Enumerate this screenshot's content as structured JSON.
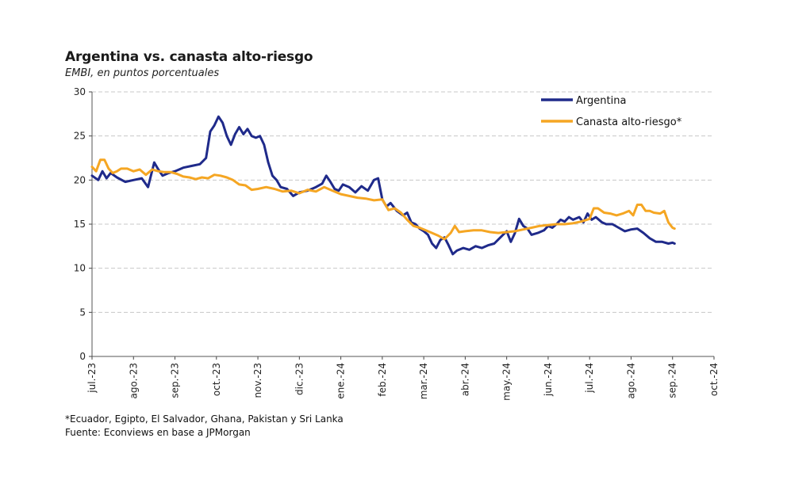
{
  "chart_data": {
    "type": "line",
    "title": "Argentina vs. canasta alto-riesgo",
    "subtitle": "EMBI, en puntos porcentuales",
    "ylim": [
      0,
      30
    ],
    "yticks": [
      0,
      5,
      10,
      15,
      20,
      25,
      30
    ],
    "grid": "horizontal dashed",
    "legend_position": "top-right",
    "x_labels": [
      "jul.-23",
      "ago.-23",
      "sep.-23",
      "oct.-23",
      "nov.-23",
      "dic.-23",
      "ene.-24",
      "feb.-24",
      "mar.-24",
      "abr.-24",
      "may.-24",
      "jun.-24",
      "jul.-24",
      "ago.-24",
      "sep.-24",
      "oct.-24"
    ],
    "x_range": [
      0,
      15
    ],
    "series": [
      {
        "name": "Argentina",
        "color": "#1f2a8a",
        "points": [
          [
            0,
            20.5
          ],
          [
            0.15,
            20.0
          ],
          [
            0.25,
            21.0
          ],
          [
            0.35,
            20.2
          ],
          [
            0.45,
            20.8
          ],
          [
            0.6,
            20.3
          ],
          [
            0.8,
            19.8
          ],
          [
            1.0,
            20.0
          ],
          [
            1.2,
            20.2
          ],
          [
            1.35,
            19.2
          ],
          [
            1.5,
            22.0
          ],
          [
            1.6,
            21.2
          ],
          [
            1.7,
            20.5
          ],
          [
            1.85,
            20.8
          ],
          [
            2.0,
            21.0
          ],
          [
            2.2,
            21.4
          ],
          [
            2.4,
            21.6
          ],
          [
            2.6,
            21.8
          ],
          [
            2.75,
            22.5
          ],
          [
            2.85,
            25.5
          ],
          [
            2.95,
            26.2
          ],
          [
            3.05,
            27.2
          ],
          [
            3.15,
            26.5
          ],
          [
            3.25,
            25.0
          ],
          [
            3.35,
            24.0
          ],
          [
            3.45,
            25.2
          ],
          [
            3.55,
            26.0
          ],
          [
            3.65,
            25.2
          ],
          [
            3.75,
            25.8
          ],
          [
            3.85,
            25.0
          ],
          [
            3.95,
            24.8
          ],
          [
            4.05,
            25.0
          ],
          [
            4.15,
            24.0
          ],
          [
            4.25,
            22.0
          ],
          [
            4.35,
            20.5
          ],
          [
            4.45,
            20.0
          ],
          [
            4.55,
            19.2
          ],
          [
            4.7,
            19.0
          ],
          [
            4.85,
            18.2
          ],
          [
            5.0,
            18.6
          ],
          [
            5.2,
            18.8
          ],
          [
            5.4,
            19.2
          ],
          [
            5.55,
            19.6
          ],
          [
            5.65,
            20.5
          ],
          [
            5.75,
            19.8
          ],
          [
            5.85,
            19.0
          ],
          [
            5.95,
            18.8
          ],
          [
            6.05,
            19.5
          ],
          [
            6.2,
            19.2
          ],
          [
            6.35,
            18.6
          ],
          [
            6.5,
            19.3
          ],
          [
            6.65,
            18.8
          ],
          [
            6.8,
            20.0
          ],
          [
            6.9,
            20.2
          ],
          [
            7.0,
            17.8
          ],
          [
            7.1,
            17.0
          ],
          [
            7.2,
            17.4
          ],
          [
            7.35,
            16.5
          ],
          [
            7.5,
            16.0
          ],
          [
            7.6,
            16.3
          ],
          [
            7.7,
            15.2
          ],
          [
            7.8,
            15.0
          ],
          [
            7.9,
            14.5
          ],
          [
            8.0,
            14.2
          ],
          [
            8.1,
            13.8
          ],
          [
            8.2,
            12.8
          ],
          [
            8.3,
            12.3
          ],
          [
            8.4,
            13.2
          ],
          [
            8.5,
            13.5
          ],
          [
            8.6,
            12.6
          ],
          [
            8.7,
            11.6
          ],
          [
            8.8,
            12.0
          ],
          [
            8.95,
            12.3
          ],
          [
            9.1,
            12.1
          ],
          [
            9.25,
            12.5
          ],
          [
            9.4,
            12.3
          ],
          [
            9.55,
            12.6
          ],
          [
            9.7,
            12.8
          ],
          [
            9.85,
            13.5
          ],
          [
            10.0,
            14.2
          ],
          [
            10.1,
            13.0
          ],
          [
            10.2,
            14.0
          ],
          [
            10.3,
            15.6
          ],
          [
            10.4,
            14.8
          ],
          [
            10.5,
            14.5
          ],
          [
            10.6,
            13.8
          ],
          [
            10.75,
            14.0
          ],
          [
            10.9,
            14.3
          ],
          [
            11.0,
            14.8
          ],
          [
            11.1,
            14.6
          ],
          [
            11.2,
            15.0
          ],
          [
            11.3,
            15.5
          ],
          [
            11.4,
            15.3
          ],
          [
            11.5,
            15.8
          ],
          [
            11.6,
            15.5
          ],
          [
            11.75,
            15.8
          ],
          [
            11.85,
            15.2
          ],
          [
            11.95,
            16.2
          ],
          [
            12.05,
            15.5
          ],
          [
            12.15,
            15.8
          ],
          [
            12.3,
            15.2
          ],
          [
            12.4,
            15.0
          ],
          [
            12.55,
            15.0
          ],
          [
            12.7,
            14.6
          ],
          [
            12.85,
            14.2
          ],
          [
            13.0,
            14.4
          ],
          [
            13.15,
            14.5
          ],
          [
            13.3,
            14.0
          ],
          [
            13.45,
            13.4
          ],
          [
            13.6,
            13.0
          ],
          [
            13.75,
            13.0
          ],
          [
            13.9,
            12.8
          ],
          [
            14.0,
            12.9
          ],
          [
            14.05,
            12.8
          ]
        ]
      },
      {
        "name": "Canasta alto-riesgo*",
        "color": "#f5a623",
        "points": [
          [
            0,
            21.5
          ],
          [
            0.1,
            21.0
          ],
          [
            0.2,
            22.3
          ],
          [
            0.3,
            22.3
          ],
          [
            0.4,
            21.3
          ],
          [
            0.5,
            20.8
          ],
          [
            0.6,
            21.0
          ],
          [
            0.7,
            21.3
          ],
          [
            0.85,
            21.3
          ],
          [
            1.0,
            21.0
          ],
          [
            1.15,
            21.2
          ],
          [
            1.3,
            20.6
          ],
          [
            1.45,
            21.2
          ],
          [
            1.6,
            21.0
          ],
          [
            1.75,
            20.9
          ],
          [
            1.9,
            20.9
          ],
          [
            2.05,
            20.7
          ],
          [
            2.2,
            20.4
          ],
          [
            2.35,
            20.3
          ],
          [
            2.5,
            20.1
          ],
          [
            2.65,
            20.3
          ],
          [
            2.8,
            20.2
          ],
          [
            2.95,
            20.6
          ],
          [
            3.1,
            20.5
          ],
          [
            3.25,
            20.3
          ],
          [
            3.4,
            20.0
          ],
          [
            3.55,
            19.5
          ],
          [
            3.7,
            19.4
          ],
          [
            3.85,
            18.9
          ],
          [
            4.0,
            19.0
          ],
          [
            4.2,
            19.2
          ],
          [
            4.4,
            19.0
          ],
          [
            4.6,
            18.7
          ],
          [
            4.8,
            18.8
          ],
          [
            5.0,
            18.5
          ],
          [
            5.2,
            18.9
          ],
          [
            5.4,
            18.7
          ],
          [
            5.6,
            19.2
          ],
          [
            5.8,
            18.8
          ],
          [
            6.0,
            18.4
          ],
          [
            6.2,
            18.2
          ],
          [
            6.4,
            18.0
          ],
          [
            6.6,
            17.9
          ],
          [
            6.8,
            17.7
          ],
          [
            7.0,
            17.8
          ],
          [
            7.15,
            16.6
          ],
          [
            7.3,
            16.8
          ],
          [
            7.45,
            16.3
          ],
          [
            7.6,
            15.5
          ],
          [
            7.75,
            14.8
          ],
          [
            7.9,
            14.6
          ],
          [
            8.05,
            14.3
          ],
          [
            8.2,
            14.0
          ],
          [
            8.35,
            13.7
          ],
          [
            8.5,
            13.3
          ],
          [
            8.65,
            14.0
          ],
          [
            8.75,
            14.8
          ],
          [
            8.85,
            14.1
          ],
          [
            9.0,
            14.2
          ],
          [
            9.2,
            14.3
          ],
          [
            9.4,
            14.3
          ],
          [
            9.6,
            14.1
          ],
          [
            9.8,
            14.0
          ],
          [
            10.0,
            14.1
          ],
          [
            10.2,
            14.2
          ],
          [
            10.4,
            14.4
          ],
          [
            10.6,
            14.6
          ],
          [
            10.8,
            14.8
          ],
          [
            11.0,
            14.9
          ],
          [
            11.2,
            15.0
          ],
          [
            11.4,
            15.0
          ],
          [
            11.6,
            15.1
          ],
          [
            11.8,
            15.3
          ],
          [
            12.0,
            15.6
          ],
          [
            12.1,
            16.8
          ],
          [
            12.2,
            16.8
          ],
          [
            12.35,
            16.3
          ],
          [
            12.5,
            16.2
          ],
          [
            12.65,
            16.0
          ],
          [
            12.8,
            16.2
          ],
          [
            12.95,
            16.5
          ],
          [
            13.05,
            16.0
          ],
          [
            13.15,
            17.2
          ],
          [
            13.25,
            17.2
          ],
          [
            13.35,
            16.5
          ],
          [
            13.45,
            16.5
          ],
          [
            13.55,
            16.3
          ],
          [
            13.7,
            16.2
          ],
          [
            13.8,
            16.5
          ],
          [
            13.9,
            15.2
          ],
          [
            14.0,
            14.6
          ],
          [
            14.05,
            14.5
          ]
        ]
      }
    ]
  },
  "footnotes": {
    "note": "*Ecuador, Egipto, El Salvador, Ghana, Pakistan y Sri Lanka",
    "source": "Fuente: Econviews en base a JPMorgan"
  }
}
